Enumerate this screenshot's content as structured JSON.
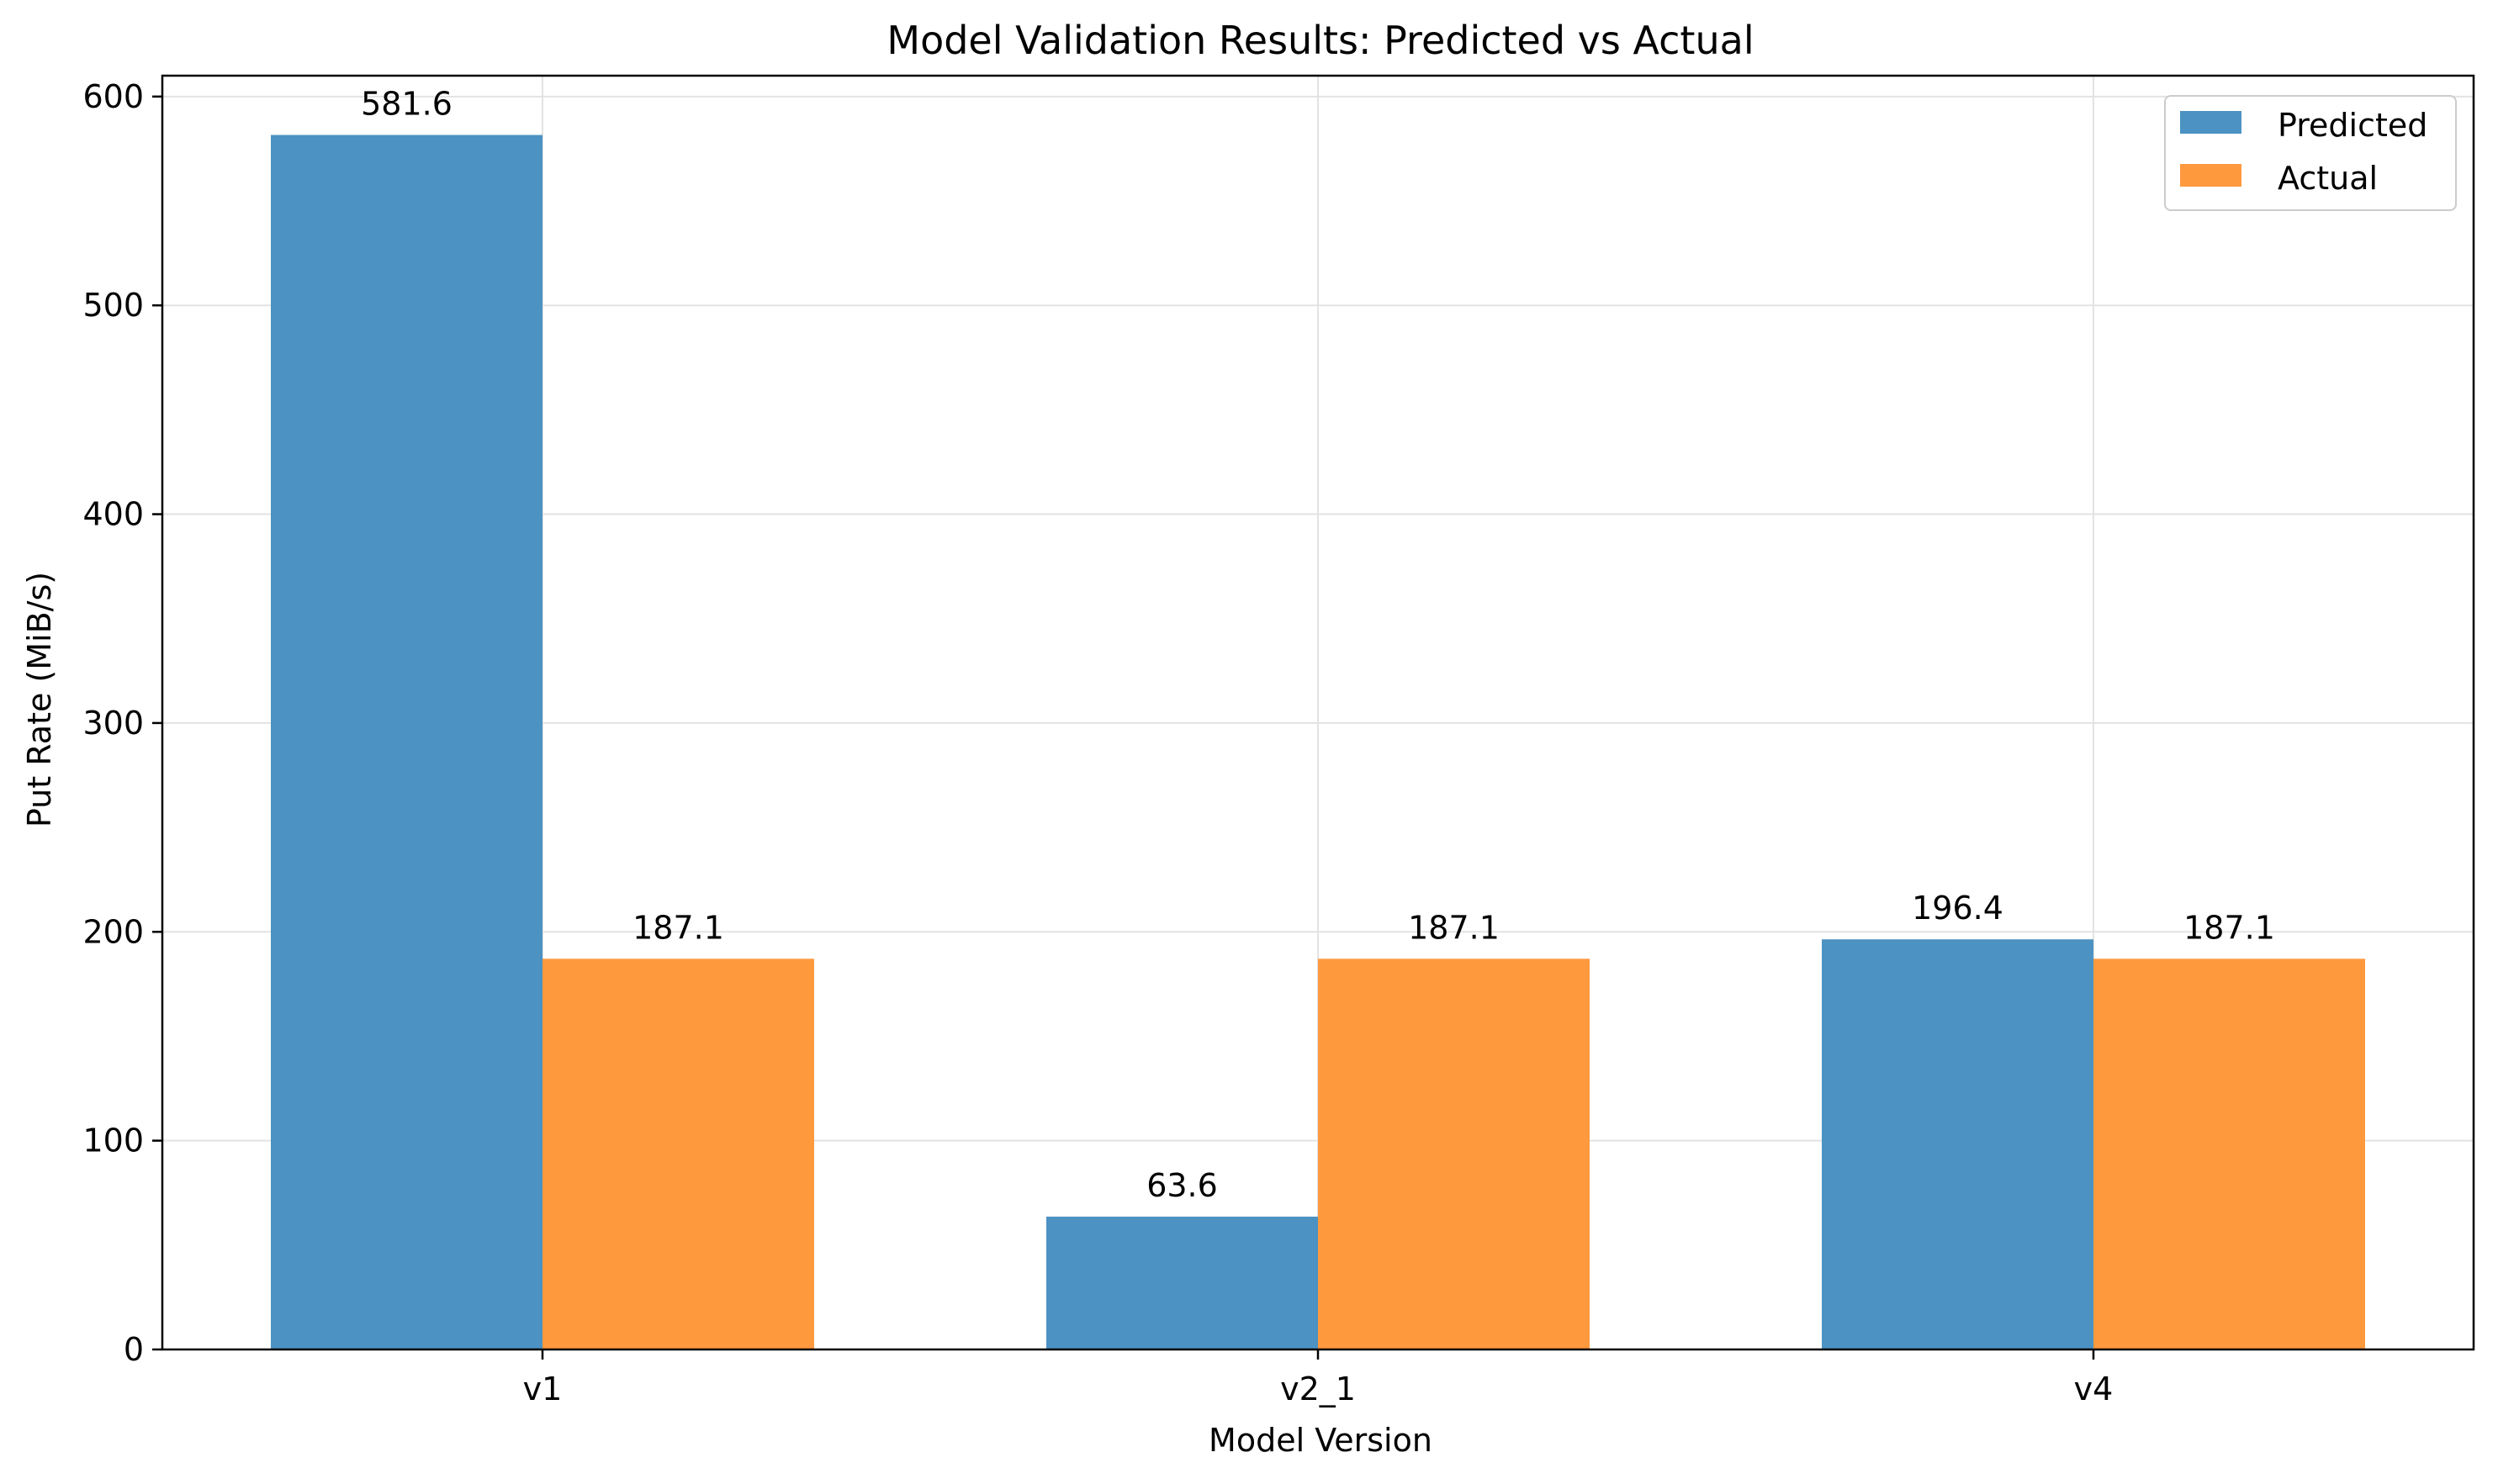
{
  "chart_data": {
    "type": "bar",
    "title": "Model Validation Results: Predicted vs Actual",
    "xlabel": "Model Version",
    "ylabel": "Put Rate (MiB/s)",
    "categories": [
      "v1",
      "v2_1",
      "v4"
    ],
    "series": [
      {
        "name": "Predicted",
        "color": "#4c92c3",
        "values": [
          581.6,
          63.6,
          196.4
        ],
        "labels": [
          "581.6",
          "63.6",
          "196.4"
        ]
      },
      {
        "name": "Actual",
        "color": "#ff993e",
        "values": [
          187.1,
          187.1,
          187.1
        ],
        "labels": [
          "187.1",
          "187.1",
          "187.1"
        ]
      }
    ],
    "ylim": [
      0,
      610
    ],
    "yticks": [
      0,
      100,
      200,
      300,
      400,
      500,
      600
    ],
    "grid": true,
    "legend_position": "top-right"
  }
}
